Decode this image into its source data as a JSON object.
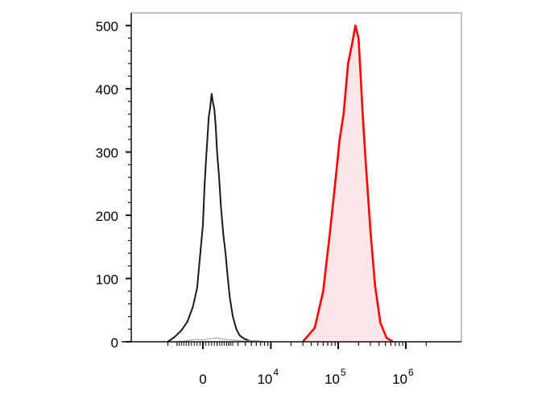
{
  "chart_data": {
    "type": "area",
    "title": "",
    "xlabel": "",
    "ylabel": "",
    "x_scale": "biexponential",
    "ylim": [
      0,
      520
    ],
    "yticks": [
      0,
      100,
      200,
      300,
      400,
      500
    ],
    "x_tick_labels": [
      {
        "value": 0,
        "base": "0",
        "exp": ""
      },
      {
        "value": 10000,
        "base": "10",
        "exp": "4"
      },
      {
        "value": 100000,
        "base": "10",
        "exp": "5"
      },
      {
        "value": 1000000,
        "base": "10",
        "exp": "6"
      }
    ],
    "grid": false,
    "legend": "none",
    "series": [
      {
        "color": "#1a1a1a",
        "fill": "none",
        "x": [
          -3000,
          -2200,
          -1600,
          -1100,
          -700,
          -400,
          -200,
          0,
          100,
          200,
          300,
          400,
          500,
          600,
          700,
          800,
          900,
          1000,
          1150,
          1300,
          1500,
          1700,
          1900,
          2100,
          2400,
          2800,
          3200,
          3800,
          4500,
          5500
        ],
        "y": [
          0,
          8,
          18,
          32,
          55,
          85,
          135,
          185,
          240,
          282,
          320,
          355,
          370,
          392,
          378,
          368,
          340,
          300,
          262,
          215,
          170,
          140,
          102,
          70,
          40,
          20,
          10,
          5,
          2,
          0
        ]
      },
      {
        "color": "#ff0000",
        "fill": "#fde6e8",
        "x": [
          30000,
          45000,
          60000,
          75000,
          90000,
          105000,
          120000,
          140000,
          160000,
          180000,
          200000,
          215000,
          230000,
          260000,
          300000,
          350000,
          420000,
          520000,
          650000
        ],
        "y": [
          0,
          22,
          80,
          170,
          250,
          320,
          360,
          440,
          470,
          500,
          480,
          420,
          360,
          270,
          175,
          90,
          30,
          6,
          0
        ]
      },
      {
        "color": "#aaaaaa",
        "fill": "none",
        "x": [
          -1800,
          -1000,
          -500,
          0,
          500,
          1000,
          1500,
          2200,
          3000,
          4000,
          6000,
          8000
        ],
        "y": [
          0,
          2,
          4,
          3,
          5,
          6,
          4,
          3,
          2,
          1,
          2,
          0
        ]
      }
    ]
  }
}
